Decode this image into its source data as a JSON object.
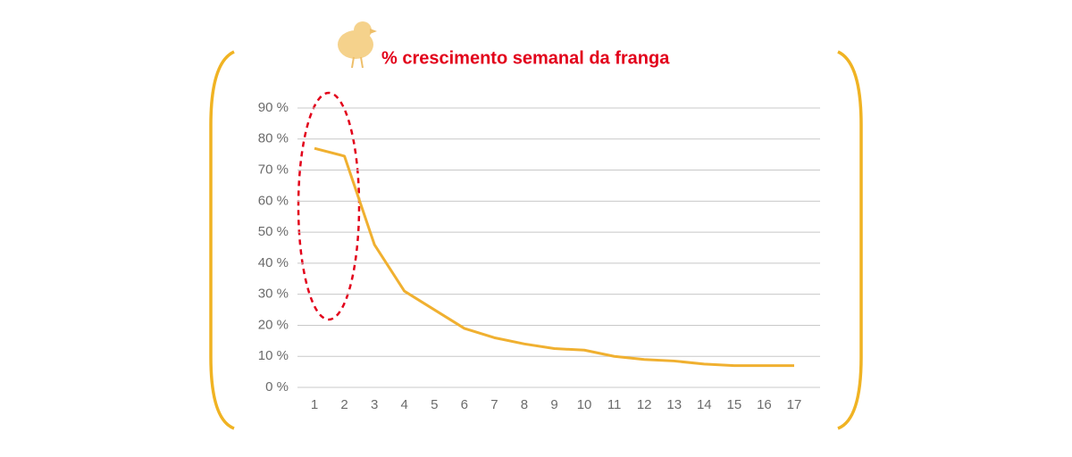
{
  "chart_data": {
    "type": "line",
    "title": "% crescimento semanal da franga",
    "categories": [
      "1",
      "2",
      "3",
      "4",
      "5",
      "6",
      "7",
      "8",
      "9",
      "10",
      "11",
      "12",
      "13",
      "14",
      "15",
      "16",
      "17"
    ],
    "values": [
      77,
      74.5,
      46,
      31,
      25,
      19,
      16,
      14,
      12.5,
      12,
      10,
      9,
      8.5,
      7.5,
      7,
      7,
      7
    ],
    "color": "#f0b030",
    "ylim": [
      0,
      90
    ],
    "yticks": [
      {
        "value": 0,
        "label": "0 %"
      },
      {
        "value": 10,
        "label": "10 %"
      },
      {
        "value": 20,
        "label": "20 %"
      },
      {
        "value": 30,
        "label": "30 %"
      },
      {
        "value": 40,
        "label": "40 %"
      },
      {
        "value": 50,
        "label": "50 %"
      },
      {
        "value": 60,
        "label": "60 %"
      },
      {
        "value": 70,
        "label": "70 %"
      },
      {
        "value": 80,
        "label": "80 %"
      },
      {
        "value": 90,
        "label": "90 %"
      }
    ],
    "grid": true
  }
}
